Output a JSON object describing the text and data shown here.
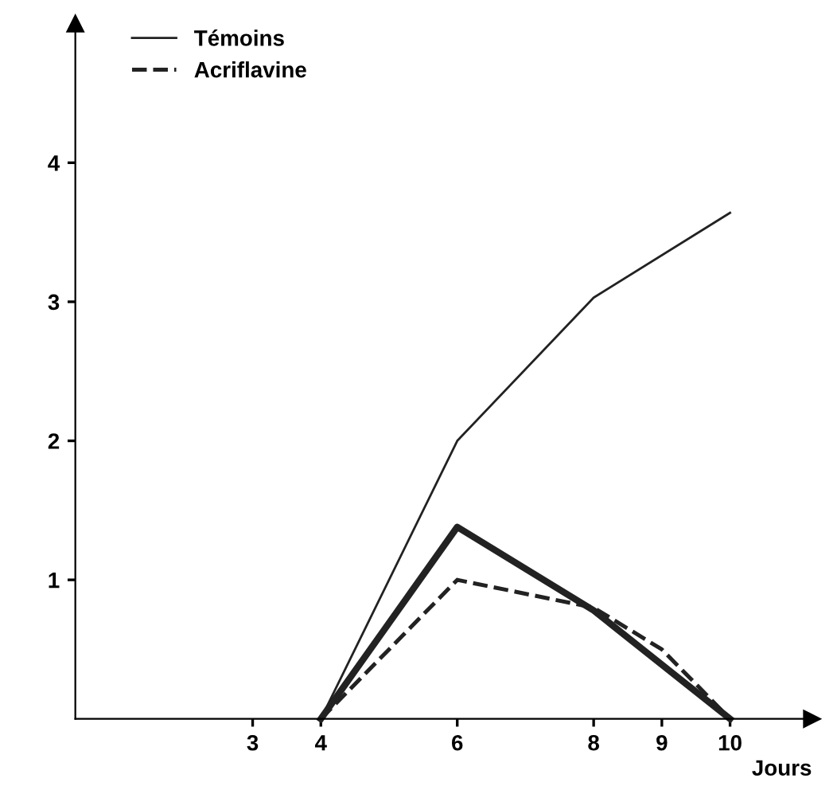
{
  "chart_data": {
    "type": "line",
    "xlabel": "Jours",
    "x": [
      4,
      6,
      8,
      9,
      10
    ],
    "series": [
      {
        "name": "Témoins",
        "color": "#222222",
        "values": [
          0,
          2.0,
          3.03,
          null,
          3.64
        ],
        "line_style": "solid"
      },
      {
        "color": "#222222",
        "values": [
          0,
          1.38,
          0.78,
          null,
          0
        ],
        "line_style": "solid"
      },
      {
        "name": "Acriflavine",
        "color": "#222222",
        "values": [
          0,
          1.0,
          0.8,
          0.5,
          0
        ],
        "line_style": "dashed"
      }
    ],
    "xlim": [
      0.4,
      11.2
    ],
    "ylim": [
      0,
      5.0
    ],
    "xticks": [
      3,
      4,
      6,
      8,
      9,
      10
    ],
    "yticks": [
      1,
      2,
      3,
      4
    ],
    "grid": false,
    "legend": "top left",
    "marker": "none"
  }
}
